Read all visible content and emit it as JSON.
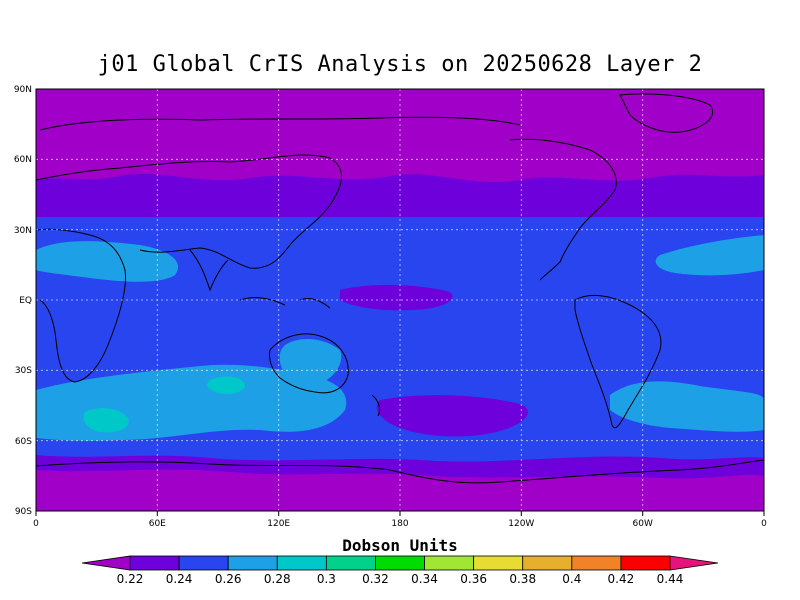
{
  "title": "j01 Global CrIS Analysis on 20250628 Layer 2",
  "lat_labels": [
    "90N",
    "60N",
    "30N",
    "EQ",
    "30S",
    "60S",
    "90S"
  ],
  "lon_labels": [
    "0",
    "60E",
    "120E",
    "180",
    "120W",
    "60W",
    "0"
  ],
  "colorbar": {
    "title": "Dobson Units",
    "labels": [
      "0.22",
      "0.24",
      "0.26",
      "0.28",
      "0.3",
      "0.32",
      "0.34",
      "0.36",
      "0.38",
      "0.4",
      "0.42",
      "0.44"
    ],
    "colors": [
      "#a000c8",
      "#6e00dc",
      "#2845f0",
      "#1ea0e6",
      "#00c8c8",
      "#00d28c",
      "#00dc00",
      "#a0e632",
      "#e6dc32",
      "#e6af2d",
      "#f08228",
      "#fa0000",
      "#e6147a"
    ]
  },
  "colors": {
    "background_level": "#2845f0",
    "high_lat": "#a000c8",
    "mid_lat": "#6e00dc",
    "light": "#1ea0e6",
    "cyan": "#00c8c8",
    "coast": "#000000",
    "grid": "#ffffff"
  }
}
